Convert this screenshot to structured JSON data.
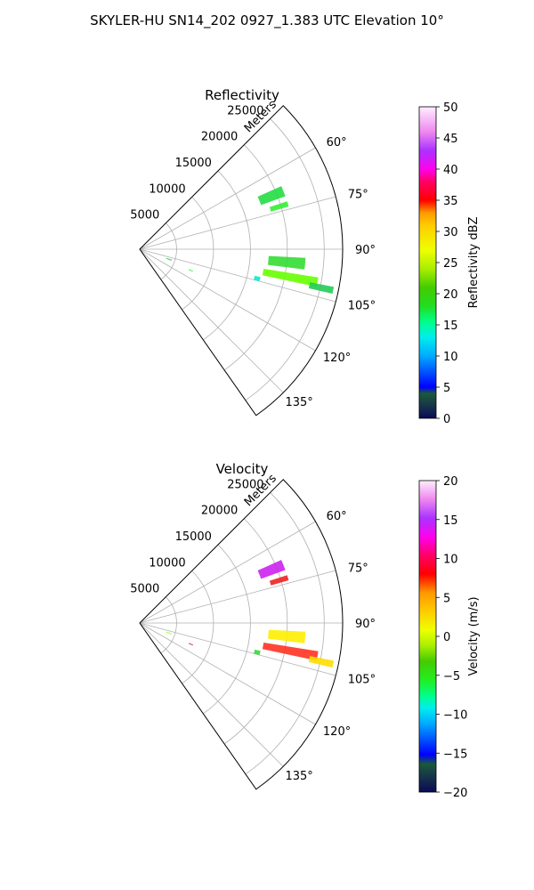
{
  "figure": {
    "title": "SKYLER-HU  SN14_202  0927_1.383 UTC Elevation 10°"
  },
  "chart_data": [
    {
      "type": "polar-sector",
      "title": "Reflectivity",
      "range_label": "Meters",
      "theta_range_deg": [
        45,
        145
      ],
      "r_max": 27500,
      "r_ticks": [
        5000,
        10000,
        15000,
        20000,
        25000
      ],
      "theta_ticks": [
        "60°",
        "75°",
        "90°",
        "105°",
        "120°",
        "135°"
      ],
      "theta_tick_values": [
        60,
        75,
        90,
        105,
        120,
        135
      ],
      "colorbar": {
        "label": "Reflectivity dBZ",
        "min": 0,
        "max": 50,
        "ticks": [
          "0",
          "5",
          "10",
          "15",
          "20",
          "25",
          "30",
          "35",
          "40",
          "45",
          "50"
        ],
        "tick_values": [
          0,
          5,
          10,
          15,
          20,
          25,
          30,
          35,
          40,
          45,
          50
        ]
      },
      "echo_regions": [
        {
          "theta_deg": [
            93,
            97
          ],
          "r_m": [
            17500,
            22500
          ],
          "value": 18,
          "color": "#33dd33"
        },
        {
          "theta_deg": [
            99,
            102
          ],
          "r_m": [
            17000,
            24500
          ],
          "value": 21,
          "color": "#66ff00"
        },
        {
          "theta_deg": [
            101,
            103
          ],
          "r_m": [
            23500,
            26800
          ],
          "value": 17,
          "color": "#22cc55"
        },
        {
          "theta_deg": [
            66,
            70
          ],
          "r_m": [
            17500,
            21000
          ],
          "value": 18,
          "color": "#22dd44"
        },
        {
          "theta_deg": [
            72,
            74
          ],
          "r_m": [
            18500,
            21000
          ],
          "value": 16,
          "color": "#33ee33"
        },
        {
          "theta_deg": [
            108,
            110
          ],
          "r_m": [
            3800,
            4600
          ],
          "value": 15,
          "color": "#33dd44"
        },
        {
          "theta_deg": [
            112,
            113
          ],
          "r_m": [
            7200,
            7800
          ],
          "value": 16,
          "color": "#44ee44"
        },
        {
          "theta_deg": [
            103,
            105
          ],
          "r_m": [
            16000,
            16800
          ],
          "value": 12,
          "color": "#00eecc"
        }
      ]
    },
    {
      "type": "polar-sector",
      "title": "Velocity",
      "range_label": "Meters",
      "theta_range_deg": [
        45,
        145
      ],
      "r_max": 27500,
      "r_ticks": [
        5000,
        10000,
        15000,
        20000,
        25000
      ],
      "theta_ticks": [
        "60°",
        "75°",
        "90°",
        "105°",
        "120°",
        "135°"
      ],
      "theta_tick_values": [
        60,
        75,
        90,
        105,
        120,
        135
      ],
      "colorbar": {
        "label": "Velocity (m/s)",
        "min": -20,
        "max": 20,
        "ticks": [
          "−20",
          "−15",
          "−10",
          "−5",
          "0",
          "5",
          "10",
          "15",
          "20"
        ],
        "tick_values": [
          -20,
          -15,
          -10,
          -5,
          0,
          5,
          10,
          15,
          20
        ]
      },
      "echo_regions": [
        {
          "theta_deg": [
            93,
            97
          ],
          "r_m": [
            17500,
            22500
          ],
          "value": 1,
          "color": "#ffee00"
        },
        {
          "theta_deg": [
            99,
            102
          ],
          "r_m": [
            17000,
            24500
          ],
          "value": 5,
          "color": "#ff3322"
        },
        {
          "theta_deg": [
            101,
            103
          ],
          "r_m": [
            23500,
            26800
          ],
          "value": 2,
          "color": "#ffdd00"
        },
        {
          "theta_deg": [
            66,
            70
          ],
          "r_m": [
            17500,
            21000
          ],
          "value": 14,
          "color": "#cc22ee"
        },
        {
          "theta_deg": [
            72,
            74
          ],
          "r_m": [
            18500,
            21000
          ],
          "value": 9,
          "color": "#ee2222"
        },
        {
          "theta_deg": [
            108,
            110
          ],
          "r_m": [
            3800,
            4600
          ],
          "value": -2,
          "color": "#aaff33"
        },
        {
          "theta_deg": [
            112,
            113
          ],
          "r_m": [
            7200,
            7800
          ],
          "value": 8,
          "color": "#dd2266"
        },
        {
          "theta_deg": [
            103,
            105
          ],
          "r_m": [
            16000,
            16800
          ],
          "value": -6,
          "color": "#33dd33"
        }
      ]
    }
  ]
}
